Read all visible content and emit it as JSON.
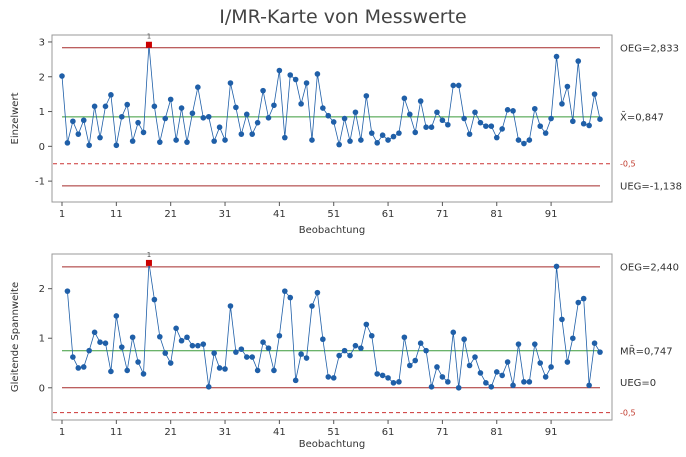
{
  "title": "I/MR-Karte von Messwerte",
  "colors": {
    "points": "#1f5fa8",
    "flagged": "#cc0000",
    "center_line": "#3a9a3a",
    "control_limit": "#a52a2a",
    "spec_line": "#cc3333"
  },
  "chart_data": [
    {
      "type": "line",
      "name": "individual-chart",
      "xlabel": "Beobachtung",
      "ylabel": "Einzelwert",
      "xlim": [
        1,
        100
      ],
      "ylim": [
        -1.6,
        3.2
      ],
      "xticks": [
        1,
        11,
        21,
        31,
        41,
        51,
        61,
        71,
        81,
        91
      ],
      "yticks": [
        -1,
        0,
        1,
        2,
        3
      ],
      "limits": {
        "ucl": {
          "value": 2.833,
          "label": "OEG=2,833"
        },
        "center": {
          "value": 0.847,
          "label": "X̄=0,847"
        },
        "lcl": {
          "value": -1.138,
          "label": "UEG=-1,138"
        },
        "spec": {
          "value": -0.5,
          "label": "-0,5"
        }
      },
      "flag_label": "1",
      "flagged_index": 16,
      "values": [
        2.02,
        0.1,
        0.72,
        0.35,
        0.75,
        0.03,
        1.15,
        0.25,
        1.15,
        1.48,
        0.03,
        0.85,
        1.2,
        0.15,
        0.68,
        0.4,
        2.92,
        1.15,
        0.12,
        0.8,
        1.35,
        0.18,
        1.1,
        0.12,
        0.95,
        1.7,
        0.82,
        0.85,
        0.15,
        0.55,
        0.18,
        1.82,
        1.12,
        0.35,
        0.92,
        0.35,
        0.68,
        1.6,
        0.82,
        1.18,
        2.18,
        0.25,
        2.05,
        1.92,
        1.22,
        1.82,
        0.18,
        2.08,
        1.1,
        0.88,
        0.7,
        0.05,
        0.8,
        0.15,
        0.98,
        0.18,
        1.45,
        0.38,
        0.1,
        0.32,
        0.18,
        0.28,
        0.38,
        1.38,
        0.92,
        0.4,
        1.3,
        0.55,
        0.55,
        0.98,
        0.75,
        0.62,
        1.75,
        1.75,
        0.8,
        0.35,
        0.98,
        0.68,
        0.58,
        0.58,
        0.25,
        0.5,
        1.05,
        1.02,
        0.18,
        0.08,
        0.18,
        1.08,
        0.58,
        0.38,
        0.8,
        2.58,
        1.22,
        1.72,
        0.72,
        2.45,
        0.65,
        0.6,
        1.5,
        0.78
      ]
    },
    {
      "type": "line",
      "name": "moving-range-chart",
      "xlabel": "Beobachtung",
      "ylabel": "Gleitende Spannweite",
      "xlim": [
        1,
        100
      ],
      "ylim": [
        -0.65,
        2.7
      ],
      "xticks": [
        1,
        11,
        21,
        31,
        41,
        51,
        61,
        71,
        81,
        91
      ],
      "yticks": [
        0,
        1,
        2
      ],
      "limits": {
        "ucl": {
          "value": 2.44,
          "label": "OEG=2,440"
        },
        "center": {
          "value": 0.747,
          "label": "MR̄=0,747"
        },
        "lcl": {
          "value": 0,
          "label": "UEG=0"
        },
        "spec": {
          "value": -0.5,
          "label": "-0,5"
        }
      },
      "flag_label": "1",
      "flagged_index": 15,
      "x_start": 2,
      "values": [
        1.95,
        0.62,
        0.4,
        0.42,
        0.75,
        1.12,
        0.92,
        0.9,
        0.33,
        1.45,
        0.82,
        0.35,
        1.02,
        0.52,
        0.28,
        2.52,
        1.78,
        1.03,
        0.7,
        0.5,
        1.2,
        0.95,
        1.02,
        0.85,
        0.85,
        0.88,
        0.02,
        0.7,
        0.4,
        0.38,
        1.65,
        0.72,
        0.78,
        0.62,
        0.62,
        0.35,
        0.92,
        0.8,
        0.35,
        1.05,
        1.95,
        1.82,
        0.15,
        0.68,
        0.6,
        1.65,
        1.92,
        0.98,
        0.22,
        0.2,
        0.65,
        0.75,
        0.65,
        0.85,
        0.8,
        1.28,
        1.05,
        0.28,
        0.25,
        0.2,
        0.1,
        0.12,
        1.02,
        0.45,
        0.55,
        0.9,
        0.75,
        0.02,
        0.42,
        0.22,
        0.12,
        1.12,
        0.0,
        0.98,
        0.45,
        0.62,
        0.3,
        0.1,
        0.02,
        0.32,
        0.25,
        0.52,
        0.05,
        0.88,
        0.12,
        0.12,
        0.88,
        0.5,
        0.22,
        0.42,
        2.45,
        1.38,
        0.52,
        1.0,
        1.72,
        1.8,
        0.05,
        0.9,
        0.72
      ]
    }
  ]
}
